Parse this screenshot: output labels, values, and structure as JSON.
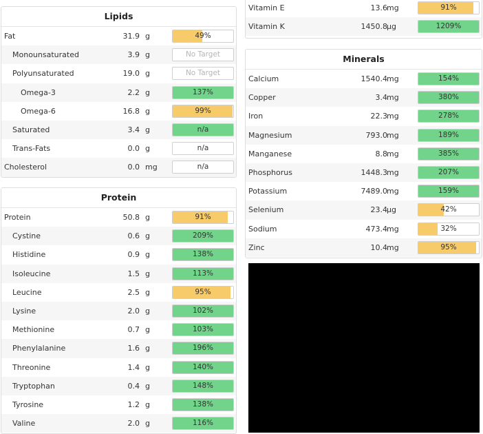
{
  "colors": {
    "green": "#72d48a",
    "yellow": "#f8cb6a"
  },
  "lipids": {
    "title": "Lipids",
    "rows": [
      {
        "name": "Fat",
        "amount": "31.9",
        "unit": "g",
        "label": "49%",
        "fill": 0.49,
        "color": "yellow",
        "indent": 0
      },
      {
        "name": "Monounsaturated",
        "amount": "3.9",
        "unit": "g",
        "label": "No Target",
        "fill": 0,
        "color": "none",
        "indent": 1
      },
      {
        "name": "Polyunsaturated",
        "amount": "19.0",
        "unit": "g",
        "label": "No Target",
        "fill": 0,
        "color": "none",
        "indent": 1
      },
      {
        "name": "Omega-3",
        "amount": "2.2",
        "unit": "g",
        "label": "137%",
        "fill": 1,
        "color": "green",
        "indent": 2
      },
      {
        "name": "Omega-6",
        "amount": "16.8",
        "unit": "g",
        "label": "99%",
        "fill": 0.99,
        "color": "yellow",
        "indent": 2
      },
      {
        "name": "Saturated",
        "amount": "3.4",
        "unit": "g",
        "label": "n/a",
        "fill": 1,
        "color": "green",
        "indent": 1
      },
      {
        "name": "Trans-Fats",
        "amount": "0.0",
        "unit": "g",
        "label": "n/a",
        "fill": 0,
        "color": "none",
        "indent": 1
      },
      {
        "name": "Cholesterol",
        "amount": "0.0",
        "unit": "mg",
        "label": "n/a",
        "fill": 0,
        "color": "none",
        "indent": 0
      }
    ]
  },
  "protein": {
    "title": "Protein",
    "rows": [
      {
        "name": "Protein",
        "amount": "50.8",
        "unit": "g",
        "label": "91%",
        "fill": 0.91,
        "color": "yellow",
        "indent": 0
      },
      {
        "name": "Cystine",
        "amount": "0.6",
        "unit": "g",
        "label": "209%",
        "fill": 1,
        "color": "green",
        "indent": 1
      },
      {
        "name": "Histidine",
        "amount": "0.9",
        "unit": "g",
        "label": "138%",
        "fill": 1,
        "color": "green",
        "indent": 1
      },
      {
        "name": "Isoleucine",
        "amount": "1.5",
        "unit": "g",
        "label": "113%",
        "fill": 1,
        "color": "green",
        "indent": 1
      },
      {
        "name": "Leucine",
        "amount": "2.5",
        "unit": "g",
        "label": "95%",
        "fill": 0.95,
        "color": "yellow",
        "indent": 1
      },
      {
        "name": "Lysine",
        "amount": "2.0",
        "unit": "g",
        "label": "102%",
        "fill": 1,
        "color": "green",
        "indent": 1
      },
      {
        "name": "Methionine",
        "amount": "0.7",
        "unit": "g",
        "label": "103%",
        "fill": 1,
        "color": "green",
        "indent": 1
      },
      {
        "name": "Phenylalanine",
        "amount": "1.6",
        "unit": "g",
        "label": "196%",
        "fill": 1,
        "color": "green",
        "indent": 1
      },
      {
        "name": "Threonine",
        "amount": "1.4",
        "unit": "g",
        "label": "140%",
        "fill": 1,
        "color": "green",
        "indent": 1
      },
      {
        "name": "Tryptophan",
        "amount": "0.4",
        "unit": "g",
        "label": "148%",
        "fill": 1,
        "color": "green",
        "indent": 1
      },
      {
        "name": "Tyrosine",
        "amount": "1.2",
        "unit": "g",
        "label": "138%",
        "fill": 1,
        "color": "green",
        "indent": 1
      },
      {
        "name": "Valine",
        "amount": "2.0",
        "unit": "g",
        "label": "116%",
        "fill": 1,
        "color": "green",
        "indent": 1
      }
    ]
  },
  "vitamins_tail": {
    "rows": [
      {
        "name": "Vitamin E",
        "amount": "13.6",
        "unit": "mg",
        "label": "91%",
        "fill": 0.91,
        "color": "yellow",
        "indent": 0
      },
      {
        "name": "Vitamin K",
        "amount": "1450.8",
        "unit": "µg",
        "label": "1209%",
        "fill": 1,
        "color": "green",
        "indent": 0
      }
    ]
  },
  "minerals": {
    "title": "Minerals",
    "rows": [
      {
        "name": "Calcium",
        "amount": "1540.4",
        "unit": "mg",
        "label": "154%",
        "fill": 1,
        "color": "green",
        "indent": 0
      },
      {
        "name": "Copper",
        "amount": "3.4",
        "unit": "mg",
        "label": "380%",
        "fill": 1,
        "color": "green",
        "indent": 0
      },
      {
        "name": "Iron",
        "amount": "22.3",
        "unit": "mg",
        "label": "278%",
        "fill": 1,
        "color": "green",
        "indent": 0
      },
      {
        "name": "Magnesium",
        "amount": "793.0",
        "unit": "mg",
        "label": "189%",
        "fill": 1,
        "color": "green",
        "indent": 0
      },
      {
        "name": "Manganese",
        "amount": "8.8",
        "unit": "mg",
        "label": "385%",
        "fill": 1,
        "color": "green",
        "indent": 0
      },
      {
        "name": "Phosphorus",
        "amount": "1448.3",
        "unit": "mg",
        "label": "207%",
        "fill": 1,
        "color": "green",
        "indent": 0
      },
      {
        "name": "Potassium",
        "amount": "7489.0",
        "unit": "mg",
        "label": "159%",
        "fill": 1,
        "color": "green",
        "indent": 0
      },
      {
        "name": "Selenium",
        "amount": "23.4",
        "unit": "µg",
        "label": "42%",
        "fill": 0.42,
        "color": "yellow",
        "indent": 0
      },
      {
        "name": "Sodium",
        "amount": "473.4",
        "unit": "mg",
        "label": "32%",
        "fill": 0.32,
        "color": "yellow",
        "indent": 0
      },
      {
        "name": "Zinc",
        "amount": "10.4",
        "unit": "mg",
        "label": "95%",
        "fill": 0.95,
        "color": "yellow",
        "indent": 0
      }
    ]
  }
}
